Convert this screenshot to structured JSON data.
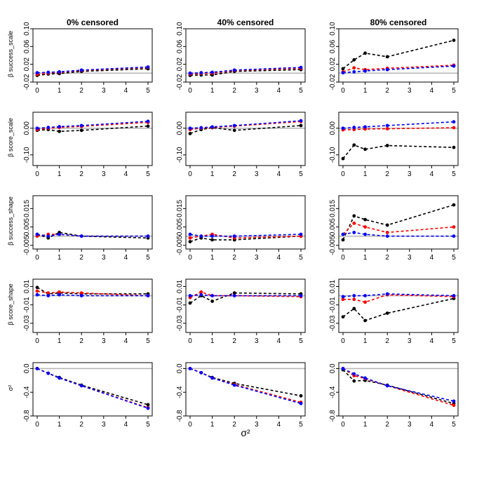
{
  "column_titles": [
    "0% censored",
    "40% censored",
    "80% censored"
  ],
  "row_ylabels": [
    "β success_scale",
    "β score_scale",
    "β success_shape",
    "β score_shape",
    "σ²"
  ],
  "x_axis_label": "σ²",
  "chart_data": {
    "type": "line",
    "x": [
      0,
      0.5,
      1,
      2,
      5
    ],
    "xticks": [
      0,
      1,
      2,
      3,
      4,
      5
    ],
    "xlim": [
      0,
      5
    ],
    "reference_line": {
      "y": 0,
      "color": "#b8b8b8"
    },
    "series_colors": [
      "#000000",
      "#ff0000",
      "#0000ff"
    ],
    "rows": [
      {
        "ylim": [
          -0.02,
          0.1
        ],
        "yticks": [
          "-0.02",
          "0.02",
          "0.06",
          "0.10"
        ],
        "ytick_values": [
          -0.02,
          0.02,
          0.06,
          0.1
        ],
        "panels": [
          {
            "series": [
              {
                "values": [
                  -0.005,
                  -0.002,
                  -0.001,
                  0.004,
                  0.01
                ]
              },
              {
                "values": [
                  -0.003,
                  0.0,
                  0.002,
                  0.006,
                  0.013
                ]
              },
              {
                "values": [
                  0.001,
                  0.002,
                  0.003,
                  0.007,
                  0.014
                ]
              }
            ]
          },
          {
            "series": [
              {
                "values": [
                  -0.005,
                  -0.004,
                  -0.004,
                  0.004,
                  0.008
                ]
              },
              {
                "values": [
                  -0.002,
                  -0.001,
                  0.0,
                  0.006,
                  0.011
                ]
              },
              {
                "values": [
                  0.0,
                  0.001,
                  0.002,
                  0.007,
                  0.013
                ]
              }
            ]
          },
          {
            "series": [
              {
                "values": [
                  0.01,
                  0.03,
                  0.045,
                  0.037,
                  0.074
                ]
              },
              {
                "values": [
                  0.003,
                  0.012,
                  0.008,
                  0.011,
                  0.018
                ]
              },
              {
                "values": [
                  0.001,
                  0.003,
                  0.005,
                  0.008,
                  0.016
                ]
              }
            ]
          }
        ]
      },
      {
        "ylim": [
          -0.14,
          0.06
        ],
        "yticks": [
          "-0.10",
          "0.00"
        ],
        "ytick_values": [
          -0.1,
          0.0
        ],
        "panels": [
          {
            "series": [
              {
                "values": [
                  -0.008,
                  -0.005,
                  -0.012,
                  -0.008,
                  0.008
                ]
              },
              {
                "values": [
                  -0.005,
                  0.0,
                  0.003,
                  0.007,
                  0.022
                ]
              },
              {
                "values": [
                  0.0,
                  0.003,
                  0.006,
                  0.01,
                  0.026
                ]
              }
            ]
          },
          {
            "series": [
              {
                "values": [
                  -0.02,
                  -0.005,
                  0.002,
                  -0.008,
                  0.01
                ]
              },
              {
                "values": [
                  -0.005,
                  0.0,
                  0.003,
                  0.008,
                  0.025
                ]
              },
              {
                "values": [
                  0.0,
                  0.002,
                  0.005,
                  0.01,
                  0.028
                ]
              }
            ]
          },
          {
            "series": [
              {
                "values": [
                  -0.114,
                  -0.063,
                  -0.079,
                  -0.065,
                  -0.072
                ]
              },
              {
                "values": [
                  -0.006,
                  -0.005,
                  -0.003,
                  -0.002,
                  0.002
                ]
              },
              {
                "values": [
                  0.0,
                  0.003,
                  0.005,
                  0.01,
                  0.024
                ]
              }
            ]
          }
        ]
      },
      {
        "ylim": [
          -0.007,
          0.022
        ],
        "yticks": [
          "-0.005",
          "0.005",
          "0.015"
        ],
        "ytick_values": [
          -0.005,
          0.005,
          0.015
        ],
        "panels": [
          {
            "series": [
              {
                "values": [
                  0.001,
                  -0.001,
                  0.002,
                  0.0,
                  -0.001
                ]
              },
              {
                "values": [
                  0.0,
                  0.001,
                  0.001,
                  0.0,
                  0.0
                ]
              },
              {
                "values": [
                  0.001,
                  0.0,
                  0.001,
                  0.0,
                  0.0
                ]
              }
            ]
          },
          {
            "series": [
              {
                "values": [
                  -0.003,
                  -0.001,
                  -0.002,
                  -0.002,
                  0.0
                ]
              },
              {
                "values": [
                  -0.001,
                  0.0,
                  0.001,
                  -0.001,
                  0.0
                ]
              },
              {
                "values": [
                  0.001,
                  0.0,
                  0.0,
                  0.0,
                  0.001
                ]
              }
            ]
          },
          {
            "series": [
              {
                "values": [
                  -0.002,
                  0.011,
                  0.009,
                  0.006,
                  0.017
                ]
              },
              {
                "values": [
                  0.001,
                  0.007,
                  0.005,
                  0.002,
                  0.005
                ]
              },
              {
                "values": [
                  0.001,
                  0.002,
                  0.001,
                  0.0,
                  0.0
                ]
              }
            ]
          }
        ]
      },
      {
        "ylim": [
          -0.04,
          0.018
        ],
        "yticks": [
          "-0.03",
          "-0.01",
          "0.01"
        ],
        "ytick_values": [
          -0.03,
          -0.01,
          0.01
        ],
        "panels": [
          {
            "series": [
              {
                "values": [
                  0.009,
                  0.002,
                  0.003,
                  0.002,
                  0.002
                ]
              },
              {
                "values": [
                  0.005,
                  0.003,
                  0.004,
                  0.003,
                  0.0
                ]
              },
              {
                "values": [
                  0.001,
                  0.0,
                  0.001,
                  0.0,
                  0.0
                ]
              }
            ]
          },
          {
            "series": [
              {
                "values": [
                  -0.008,
                  0.0,
                  -0.006,
                  0.003,
                  0.002
                ]
              },
              {
                "values": [
                  -0.002,
                  0.004,
                  0.0,
                  0.0,
                  -0.001
                ]
              },
              {
                "values": [
                  0.0,
                  0.001,
                  0.0,
                  0.0,
                  0.0
                ]
              }
            ]
          },
          {
            "series": [
              {
                "values": [
                  -0.023,
                  -0.014,
                  -0.027,
                  -0.019,
                  -0.003
                ]
              },
              {
                "values": [
                  -0.004,
                  -0.004,
                  -0.007,
                  0.001,
                  -0.001
                ]
              },
              {
                "values": [
                  -0.001,
                  0.0,
                  0.0,
                  0.002,
                  0.0
                ]
              }
            ]
          }
        ]
      },
      {
        "ylim": [
          -0.8,
          0.1
        ],
        "yticks": [
          "-0.8",
          "-0.4",
          "0.0"
        ],
        "ytick_values": [
          -0.8,
          -0.4,
          0.0
        ],
        "panels": [
          {
            "series": [
              {
                "values": [
                  0.0,
                  -0.08,
                  -0.15,
                  -0.28,
                  -0.61
                ]
              },
              {
                "values": [
                  0.0,
                  -0.08,
                  -0.16,
                  -0.29,
                  -0.66
                ]
              },
              {
                "values": [
                  0.0,
                  -0.08,
                  -0.16,
                  -0.29,
                  -0.67
                ]
              }
            ]
          },
          {
            "series": [
              {
                "values": [
                  0.0,
                  -0.07,
                  -0.15,
                  -0.25,
                  -0.46
                ]
              },
              {
                "values": [
                  0.0,
                  -0.07,
                  -0.16,
                  -0.27,
                  -0.57
                ]
              },
              {
                "values": [
                  0.0,
                  -0.07,
                  -0.16,
                  -0.28,
                  -0.59
                ]
              }
            ]
          },
          {
            "series": [
              {
                "values": [
                  -0.02,
                  -0.21,
                  -0.2,
                  -0.28,
                  -0.59
                ]
              },
              {
                "values": [
                  0.0,
                  -0.12,
                  -0.17,
                  -0.29,
                  -0.62
                ]
              },
              {
                "values": [
                  0.0,
                  -0.09,
                  -0.16,
                  -0.29,
                  -0.55
                ]
              }
            ]
          }
        ]
      }
    ]
  }
}
